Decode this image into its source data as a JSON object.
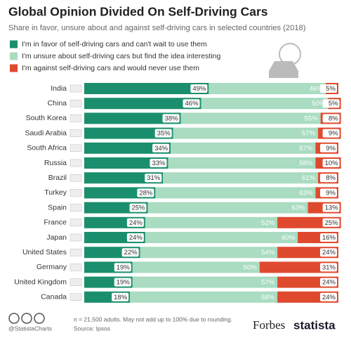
{
  "chart_data": {
    "type": "bar",
    "orientation": "horizontal",
    "stacked": true,
    "title": "Global Opinion Divided On Self-Driving Cars",
    "subtitle": "Share in favor, unsure about and against self-driving cars in selected countries (2018)",
    "categories": [
      "India",
      "China",
      "South Korea",
      "Saudi Arabia",
      "South Africa",
      "Russia",
      "Brazil",
      "Turkey",
      "Spain",
      "France",
      "Japan",
      "United States",
      "Germany",
      "United Kingdom",
      "Canada"
    ],
    "xlim": [
      0,
      100
    ],
    "series": [
      {
        "name": "I'm in favor of self-driving cars and can't wait to use them",
        "color": "#1b8f6d",
        "values": [
          49,
          46,
          38,
          35,
          34,
          33,
          31,
          28,
          25,
          24,
          24,
          22,
          19,
          19,
          18
        ],
        "value_labels": [
          "49%",
          "46%",
          "38%",
          "35%",
          "34%",
          "33%",
          "31%",
          "28%",
          "25%",
          "24%",
          "24%",
          "22%",
          "19%",
          "19%",
          "18%"
        ]
      },
      {
        "name": "I'm unsure about self-driving cars but find the idea interesting",
        "color": "#a9dcc1",
        "values": [
          46,
          50,
          55,
          57,
          57,
          58,
          61,
          63,
          63,
          52,
          60,
          54,
          50,
          57,
          58
        ],
        "value_labels": [
          "46%",
          "50%",
          "55%",
          "57%",
          "57%",
          "58%",
          "61%",
          "63%",
          "63%",
          "52%",
          "60%",
          "54%",
          "50%",
          "57%",
          "58%"
        ]
      },
      {
        "name": "I'm against self-driving cars and would never use them",
        "color": "#df4a2e",
        "values": [
          5,
          5,
          8,
          9,
          9,
          10,
          8,
          9,
          13,
          25,
          16,
          24,
          31,
          24,
          24
        ],
        "value_labels": [
          "5%",
          "5%",
          "8%",
          "9%",
          "9%",
          "10%",
          "8%",
          "9%",
          "13%",
          "25%",
          "16%",
          "24%",
          "31%",
          "24%",
          "24%"
        ]
      }
    ],
    "note": "n = 21,500 adults. May not add up to 100% due to rounding.",
    "credit": "@StatistaCharts",
    "source": "Source: Ipsos",
    "logos": [
      "Forbes",
      "statista"
    ]
  }
}
